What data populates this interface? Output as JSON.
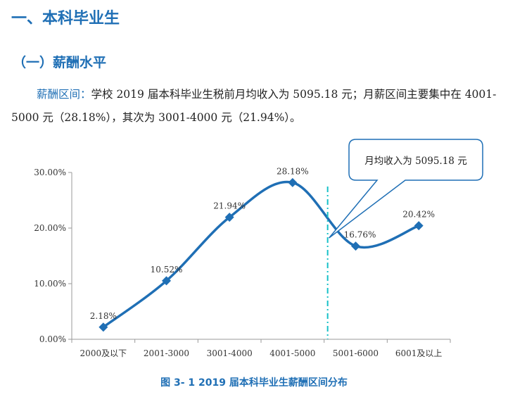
{
  "heading1": "一、本科毕业生",
  "heading2": "（一）薪酬水平",
  "paragraph": {
    "lead": "薪酬区间：",
    "body": "学校 2019 届本科毕业生税前月均收入为 5095.18 元；月薪区间主要集中在 4001-5000 元（28.18%），其次为 3001-4000 元（21.94%）。"
  },
  "caption": "图 3- 1    2019 届本科毕业生薪酬区间分布",
  "colors": {
    "accent": "#1f6fb5",
    "line": "#1f6fb5",
    "marker_line": "#16c0c8",
    "callout_border": "#1f6fb5"
  },
  "chart_data": {
    "type": "line",
    "categories": [
      "2000及以下",
      "2001-3000",
      "3001-4000",
      "4001-5000",
      "5001-6000",
      "6001及以上"
    ],
    "values": [
      2.18,
      10.52,
      21.94,
      28.18,
      16.76,
      20.42
    ],
    "data_labels": [
      "2.18%",
      "10.52%",
      "21.94%",
      "28.18%",
      "16.76%",
      "20.42%"
    ],
    "ylim": [
      0,
      30
    ],
    "yticks": [
      0,
      10,
      20,
      30
    ],
    "ytick_labels": [
      "0.00%",
      "10.00%",
      "20.00%",
      "30.00%"
    ],
    "smooth": true,
    "marker": "diamond",
    "reference_line": {
      "position": "between 4001-5000 and 5001-6000",
      "style": "dash-dot"
    },
    "annotation": "月均收入为 5095.18 元",
    "xlabel": "",
    "ylabel": "",
    "grid": false
  }
}
